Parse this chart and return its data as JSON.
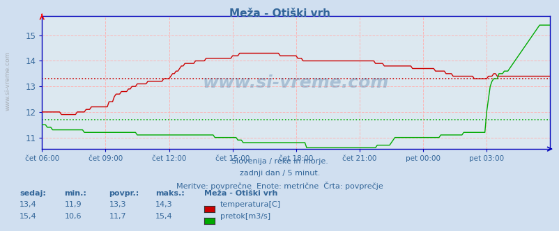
{
  "title": "Meža - Otiški vrh",
  "bg_color": "#d0dff0",
  "plot_bg_color": "#dce8f0",
  "grid_color": "#ffb0b0",
  "temp_color": "#cc0000",
  "flow_color": "#00aa00",
  "temp_avg": 13.3,
  "flow_avg": 11.7,
  "temp_min": 11.9,
  "temp_max": 14.3,
  "flow_min": 10.6,
  "flow_max": 15.4,
  "temp_current": 13.4,
  "flow_current": 15.4,
  "temp_povpr": 13.3,
  "flow_povpr": 11.7,
  "ylim_bottom": 10.55,
  "ylim_top": 15.75,
  "yticks": [
    11,
    12,
    13,
    14,
    15
  ],
  "xtick_labels": [
    "čet 06:00",
    "čet 09:00",
    "čet 12:00",
    "čet 15:00",
    "čet 18:00",
    "čet 21:00",
    "pet 00:00",
    "pet 03:00"
  ],
  "xtick_positions": [
    0,
    36,
    72,
    108,
    144,
    180,
    216,
    252
  ],
  "n_points": 289,
  "watermark": "www.si-vreme.com",
  "subtitle1": "Slovenija / reke in morje.",
  "subtitle2": "zadnji dan / 5 minut.",
  "subtitle3": "Meritve: povprečne  Enote: metrične  Črta: povprečje",
  "legend_title": "Meža - Otiški vrh",
  "label_temp": "temperatura[C]",
  "label_flow": "pretok[m3/s]",
  "text_color": "#336699",
  "axis_color": "#0000bb",
  "left_rotated_text": "www.si-vreme.com"
}
